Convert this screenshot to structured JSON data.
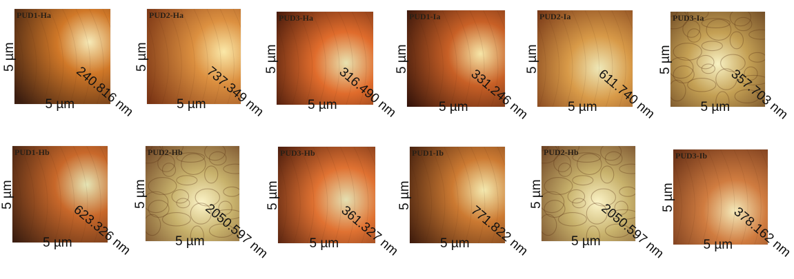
{
  "panels": [
    {
      "title": "PUD1-Ha",
      "y_label": "5 µm",
      "x_label": "5 µm",
      "z_label": "240.816 nm",
      "palette": [
        "#3c1e10",
        "#d07828",
        "#f6eab8"
      ],
      "rough": false
    },
    {
      "title": "PUD2-Ha",
      "y_label": "5 µm",
      "x_label": "5 µm",
      "z_label": "737.349 nm",
      "palette": [
        "#7a3414",
        "#dc9040",
        "#fae8a8"
      ],
      "rough": false
    },
    {
      "title": "PUD3-Ha",
      "y_label": "5 µm",
      "x_label": "5 µm",
      "z_label": "316.490 nm",
      "palette": [
        "#3a1208",
        "#e06c2c",
        "#e8e2b0"
      ],
      "rough": false
    },
    {
      "title": "PUD1-Ia",
      "y_label": "5 µm",
      "x_label": "5 µm",
      "z_label": "331.246 nm",
      "palette": [
        "#2a0e08",
        "#c86026",
        "#f6e6a8"
      ],
      "rough": false
    },
    {
      "title": "PUD2-Ia",
      "y_label": "5 µm",
      "x_label": "5 µm",
      "z_label": "611.740 nm",
      "palette": [
        "#6a2a10",
        "#d89a48",
        "#eee8b8"
      ],
      "rough": false
    },
    {
      "title": "PUD3-Ia",
      "y_label": "5 µm",
      "x_label": "5 µm",
      "z_label": "357.703 nm",
      "palette": [
        "#4a2410",
        "#c4a054",
        "#f8f2c4"
      ],
      "rough": true
    },
    {
      "title": "PUD1-Hb",
      "y_label": "5 µm",
      "x_label": "5 µm",
      "z_label": "623.326 nm",
      "palette": [
        "#3c1e10",
        "#c8682a",
        "#e6e6b6"
      ],
      "rough": false
    },
    {
      "title": "PUD2-Hb",
      "y_label": "5 µm",
      "x_label": "5 µm",
      "z_label": "2050.597 nm",
      "palette": [
        "#5a2a14",
        "#c8b26c",
        "#fcf4c8"
      ],
      "rough": true
    },
    {
      "title": "PUD3-Hb",
      "y_label": "5 µm",
      "x_label": "5 µm",
      "z_label": "361.327 nm",
      "palette": [
        "#3a1208",
        "#e07232",
        "#e4e0b2"
      ],
      "rough": false
    },
    {
      "title": "PUD1-Ib",
      "y_label": "5 µm",
      "x_label": "5 µm",
      "z_label": "771.822 nm",
      "palette": [
        "#3c1a0c",
        "#cc7a32",
        "#f4eab0"
      ],
      "rough": false
    },
    {
      "title": "PUD2-Hb",
      "y_label": "5 µm",
      "x_label": "5 µm",
      "z_label": "2050.597 nm",
      "palette": [
        "#5a2a14",
        "#c8b26c",
        "#fcf4c8"
      ],
      "rough": true
    },
    {
      "title": "PUD3-Ib",
      "y_label": "5 µm",
      "x_label": "5 µm",
      "z_label": "378.162 nm",
      "palette": [
        "#5c2812",
        "#d07c40",
        "#f4eaba"
      ],
      "rough": false
    }
  ]
}
